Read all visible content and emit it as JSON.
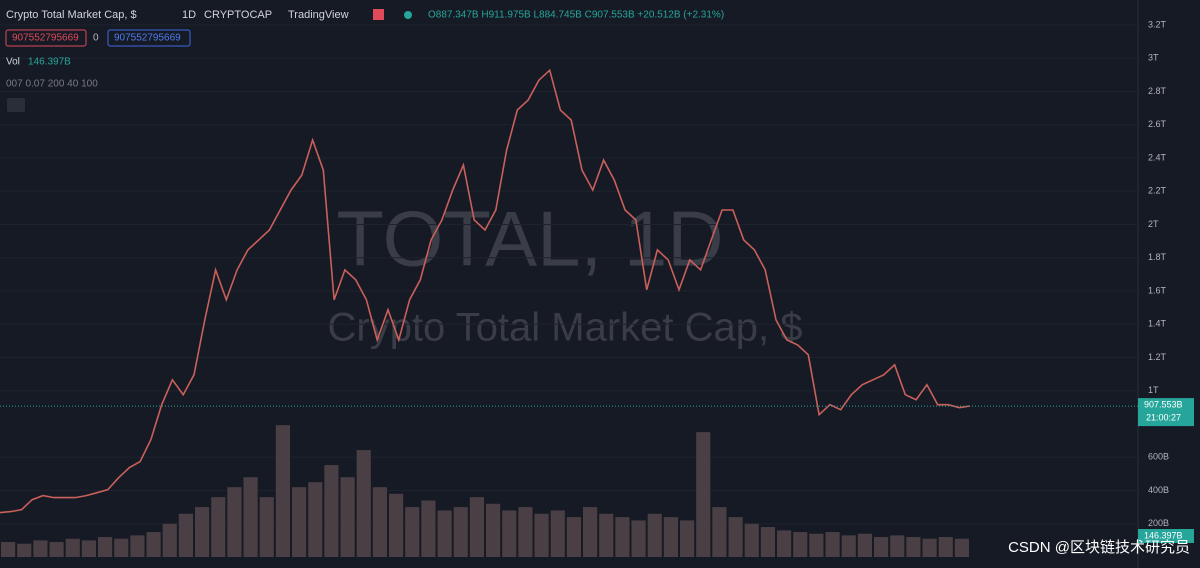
{
  "chart_data": {
    "type": "line",
    "title": "Crypto Total Market Cap, $",
    "interval": "1D",
    "exchange": "CRYPTOCAP",
    "source": "TradingView",
    "ohlc": "O887.347B H911.975B L884.745B C907.553B +20.512B (+2.31%)",
    "buttons": [
      "907552795669",
      "0",
      "907552795669"
    ],
    "volume_label": "Vol",
    "volume_value": "146.397B",
    "indicator": "007 0.07 200 40 100",
    "watermark": [
      "TOTAL, 1D",
      "Crypto Total Market Cap, $"
    ],
    "last_price": {
      "value": 907.553,
      "label": "907.553B"
    },
    "countdown": "21:00:27",
    "last_volume_label": "146.397B",
    "ylim": [
      0,
      3290
    ],
    "yticks": [
      {
        "value": 3200,
        "label": "3.2T"
      },
      {
        "value": 3000,
        "label": "3T"
      },
      {
        "value": 2800,
        "label": "2.8T"
      },
      {
        "value": 2600,
        "label": "2.6T"
      },
      {
        "value": 2400,
        "label": "2.4T"
      },
      {
        "value": 2200,
        "label": "2.2T"
      },
      {
        "value": 2000,
        "label": "2T"
      },
      {
        "value": 1800,
        "label": "1.8T"
      },
      {
        "value": 1600,
        "label": "1.6T"
      },
      {
        "value": 1400,
        "label": "1.4T"
      },
      {
        "value": 1200,
        "label": "1.2T"
      },
      {
        "value": 1000,
        "label": "1T"
      },
      {
        "value": 600,
        "label": "600B"
      },
      {
        "value": 400,
        "label": "400B"
      },
      {
        "value": 200,
        "label": "200B"
      }
    ],
    "grid": true,
    "color": "#c9605a",
    "values": [
      267,
      273,
      285,
      345,
      369,
      357,
      357,
      357,
      369,
      387,
      405,
      477,
      537,
      574,
      706,
      916,
      1066,
      976,
      1096,
      1426,
      1727,
      1547,
      1727,
      1847,
      1907,
      1967,
      2087,
      2207,
      2297,
      2508,
      2327,
      1547,
      1727,
      1667,
      1547,
      1306,
      1487,
      1306,
      1547,
      1667,
      1907,
      2027,
      2207,
      2357,
      2027,
      1967,
      2087,
      2447,
      2688,
      2748,
      2868,
      2928,
      2688,
      2628,
      2327,
      2207,
      2387,
      2267,
      2087,
      2027,
      1607,
      1847,
      1787,
      1607,
      1787,
      1727,
      1907,
      2087,
      2087,
      1907,
      1847,
      1727,
      1426,
      1306,
      1276,
      1216,
      856,
      916,
      886,
      976,
      1036,
      1066,
      1096,
      1156,
      976,
      946,
      1036,
      916,
      916,
      898,
      908
    ],
    "volume": {
      "color": "#4a3f44",
      "values": [
        90,
        80,
        100,
        90,
        110,
        100,
        120,
        110,
        130,
        150,
        200,
        260,
        300,
        360,
        420,
        480,
        360,
        793,
        420,
        450,
        553,
        480,
        643,
        420,
        380,
        300,
        340,
        280,
        300,
        360,
        320,
        280,
        300,
        260,
        280,
        240,
        300,
        260,
        240,
        220,
        260,
        240,
        220,
        751,
        300,
        240,
        200,
        180,
        160,
        150,
        140,
        150,
        130,
        140,
        120,
        130,
        120,
        110,
        120,
        110
      ]
    },
    "credit": "CSDN @区块链技术研究员"
  }
}
